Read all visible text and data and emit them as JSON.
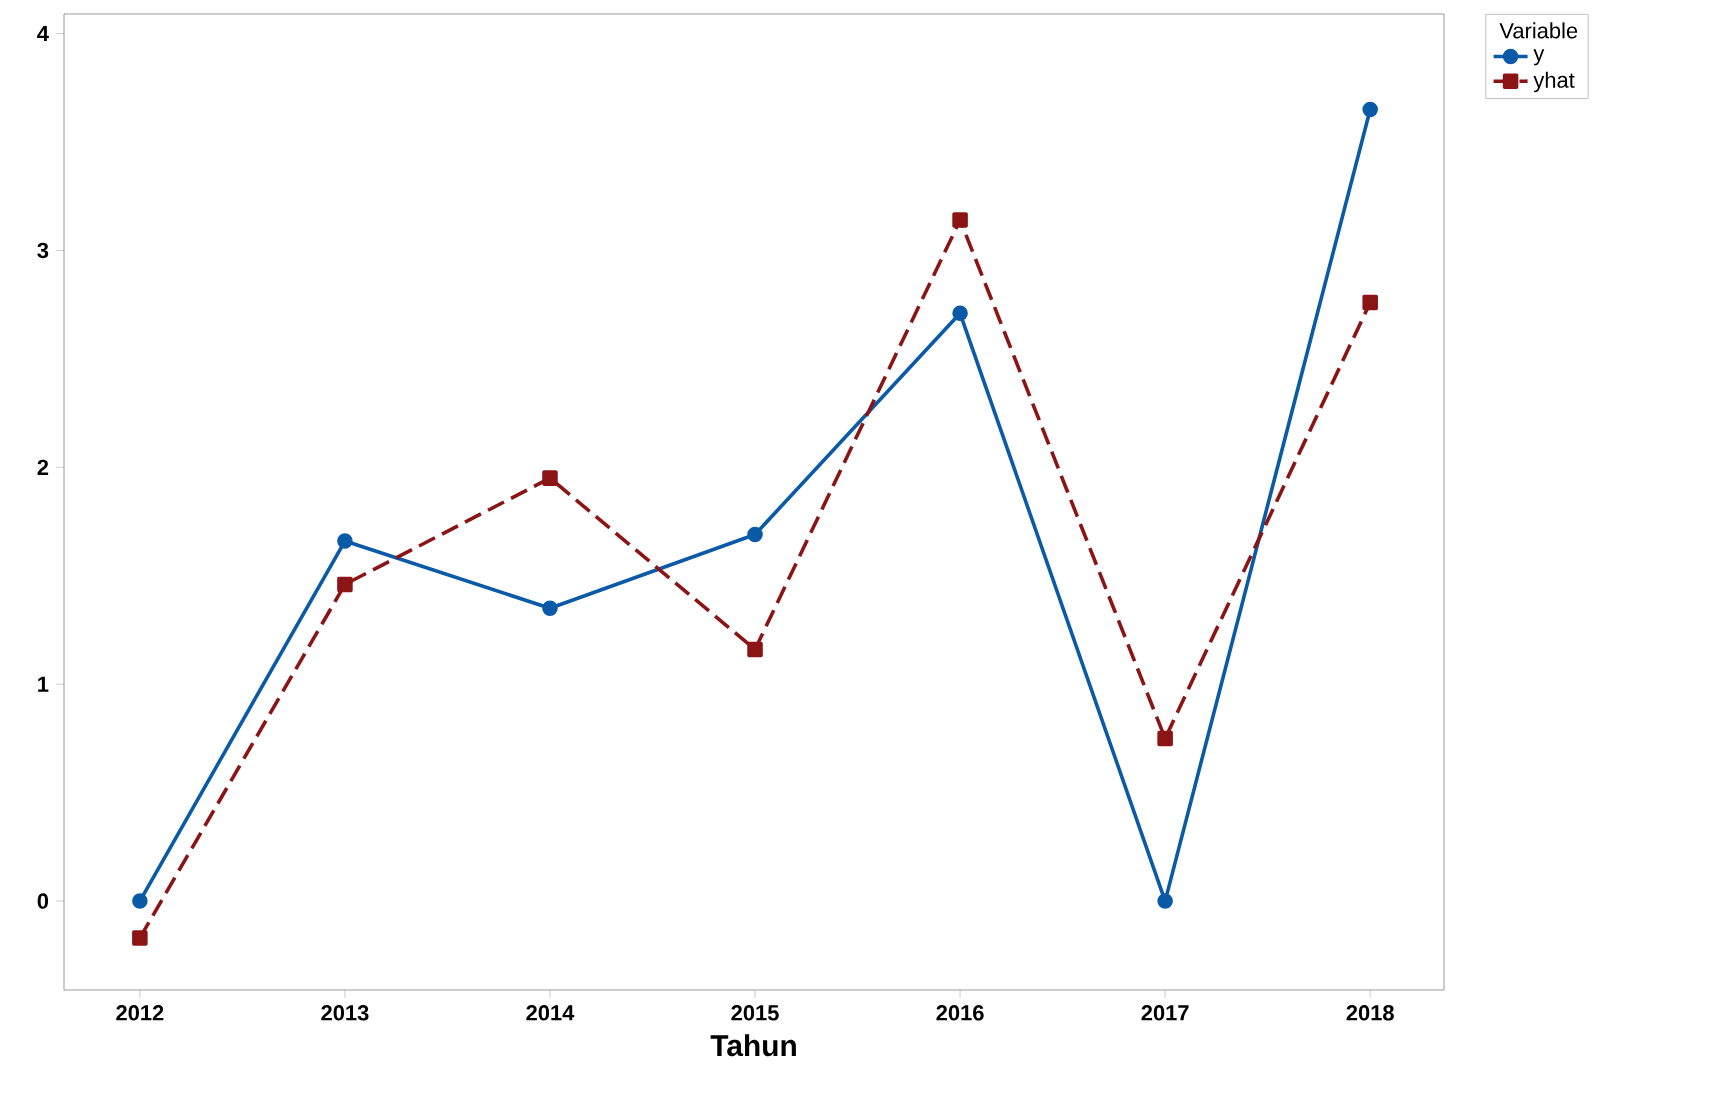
{
  "chart_data": {
    "type": "line",
    "xlabel": "Tahun",
    "legend_title": "Variable",
    "legend": "top right",
    "grid": false,
    "x": [
      2012,
      2013,
      2014,
      2015,
      2016,
      2017,
      2018
    ],
    "series": [
      {
        "name": "y",
        "color": "#0a5aa8",
        "marker": "circle",
        "line_style": "solid",
        "values": [
          0,
          1.66,
          1.35,
          1.69,
          2.71,
          0,
          3.65
        ]
      },
      {
        "name": "yhat",
        "color": "#8b1414",
        "marker": "square",
        "line_style": "dashed",
        "values": [
          -0.17,
          1.46,
          1.95,
          1.16,
          3.14,
          0.75,
          2.76
        ]
      }
    ],
    "xlim": [
      2011.63,
      2018.36
    ],
    "ylim": [
      -0.41,
      4.09
    ],
    "xticks": [
      2012,
      2013,
      2014,
      2015,
      2016,
      2017,
      2018
    ],
    "yticks": [
      0,
      1,
      2,
      3,
      4
    ]
  }
}
